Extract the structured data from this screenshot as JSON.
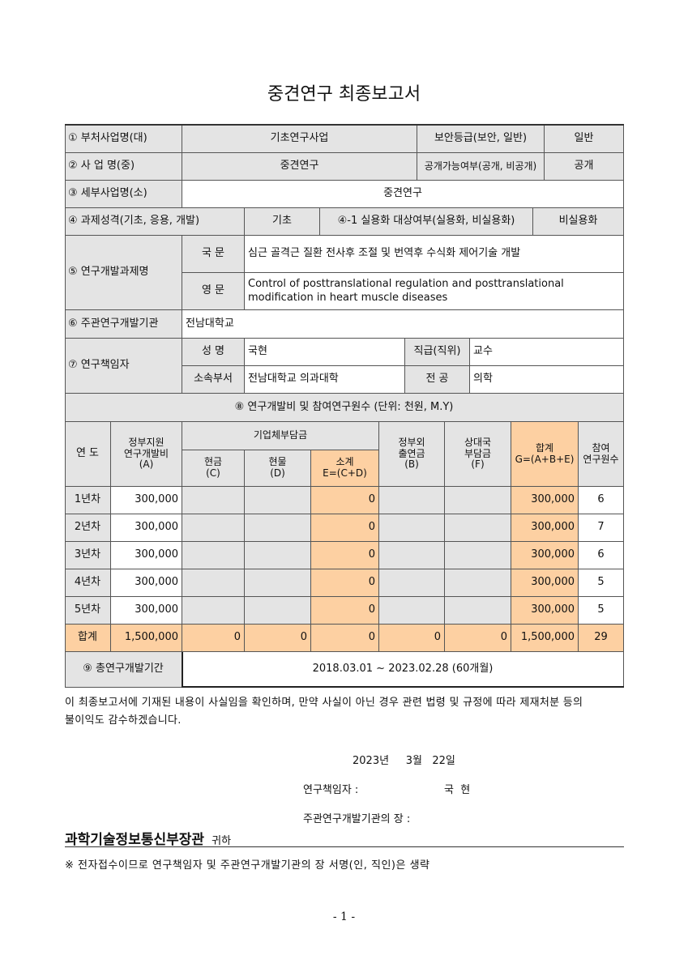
{
  "title": "중견연구 최종보고서",
  "rows": {
    "r1": {
      "label": "① 부처사업명(대)",
      "value": "기초연구사업",
      "label2": "보안등급(보안, 일반)",
      "value2": "일반"
    },
    "r2": {
      "label": "② 사  업  명(중)",
      "value": "중견연구",
      "label2": "공개가능여부(공개, 비공개)",
      "value2": "공개"
    },
    "r3": {
      "label": "③ 세부사업명(소)",
      "value": "중견연구"
    },
    "r4": {
      "label": "④ 과제성격(기초, 응용, 개발)",
      "value": "기초",
      "label2": "④-1 실용화 대상여부(실용화, 비실용화)",
      "value2": "비실용화"
    },
    "r5": {
      "label": "⑤ 연구개발과제명",
      "kor_label": "국 문",
      "kor": "심근 골격근 질환 전사후 조절 및 번역후 수식화 제어기술 개발",
      "eng_label": "영 문",
      "eng": "Control of posttranslational regulation and posttranslational modification in heart muscle diseases"
    },
    "r6": {
      "label": "⑥ 주관연구개발기관",
      "value": "전남대학교"
    },
    "r7": {
      "label": "⑦ 연구책임자",
      "name_label": "성 명",
      "name": "국현",
      "rank_label": "직급(직위)",
      "rank": "교수",
      "dept_label": "소속부서",
      "dept": "전남대학교 의과대학",
      "major_label": "전 공",
      "major": "의학"
    },
    "r8": {
      "label": "⑧ 연구개발비 및 참여연구원수 (단위: 천원, M.Y)"
    },
    "r9": {
      "label": "⑨ 총연구개발기간",
      "value": "2018.03.01 ~ 2023.02.28 (60개월)"
    }
  },
  "budget": {
    "headers": {
      "year": "연 도",
      "gov": "정부지원\n연구개발비\n(A)",
      "corp": "기업체부담금",
      "cash": "현금\n(C)",
      "kind": "현물\n(D)",
      "sub": "소계\nE=(C+D)",
      "nongov": "정부외\n출연금\n(B)",
      "partner": "상대국\n부담금\n(F)",
      "total": "합계\nG=(A+B+E)",
      "staff": "참여\n연구원수"
    },
    "years": [
      {
        "year": "1년차",
        "gov": "300,000",
        "cash": "",
        "kind": "",
        "sub": "0",
        "nongov": "",
        "partner": "",
        "total": "300,000",
        "staff": "6"
      },
      {
        "year": "2년차",
        "gov": "300,000",
        "cash": "",
        "kind": "",
        "sub": "0",
        "nongov": "",
        "partner": "",
        "total": "300,000",
        "staff": "7"
      },
      {
        "year": "3년차",
        "gov": "300,000",
        "cash": "",
        "kind": "",
        "sub": "0",
        "nongov": "",
        "partner": "",
        "total": "300,000",
        "staff": "6"
      },
      {
        "year": "4년차",
        "gov": "300,000",
        "cash": "",
        "kind": "",
        "sub": "0",
        "nongov": "",
        "partner": "",
        "total": "300,000",
        "staff": "5"
      },
      {
        "year": "5년차",
        "gov": "300,000",
        "cash": "",
        "kind": "",
        "sub": "0",
        "nongov": "",
        "partner": "",
        "total": "300,000",
        "staff": "5"
      }
    ],
    "sum": {
      "year": "합계",
      "gov": "1,500,000",
      "cash": "0",
      "kind": "0",
      "sub": "0",
      "nongov": "0",
      "partner": "0",
      "total": "1,500,000",
      "staff": "29"
    }
  },
  "statement": "이 최종보고서에 기재된 내용이 사실임을 확인하며, 만약 사실이 아닌 경우 관련 법령 및 규정에 따라 제재처분 등의 불이익도 감수하겠습니다.",
  "date": "2023년     3월   22일",
  "signer_label": "연구책임자 :",
  "signer_name": "국  현",
  "head_label": "주관연구개발기관의 장 :",
  "recipient": "과학기술정보통신부장관",
  "recipient_suffix": "귀하",
  "note": "※ 전자접수이므로 연구책임자 및 주관연구개발기관의 장 서명(인, 직인)은 생략",
  "page_number": "- 1 -",
  "colors": {
    "header_gray": "#e4e4e4",
    "highlight_orange": "#fdd0a2"
  }
}
